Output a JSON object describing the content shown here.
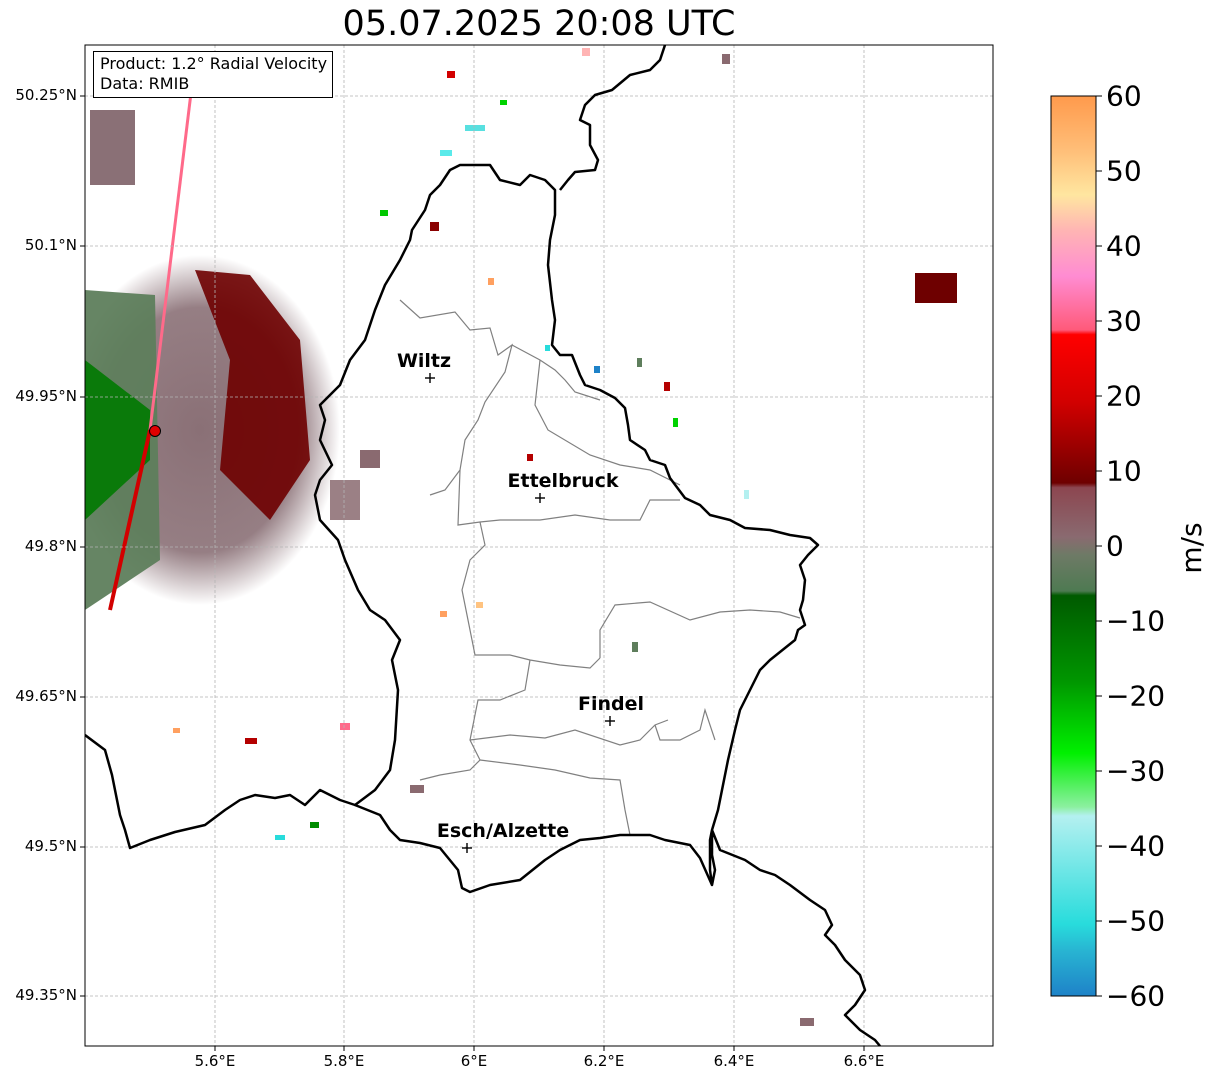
{
  "title": "05.07.2025 20:08 UTC",
  "info": {
    "product": "Product: 1.2° Radial Velocity",
    "data": "Data: RMIB"
  },
  "map": {
    "lat_labels": [
      "50.25°N",
      "50.1°N",
      "49.95°N",
      "49.8°N",
      "49.65°N",
      "49.5°N",
      "49.35°N"
    ],
    "lon_labels": [
      "5.6°E",
      "5.8°E",
      "6°E",
      "6.2°E",
      "6.4°E",
      "6.6°E"
    ],
    "cities": [
      {
        "name": "Wiltz",
        "lon": 5.93,
        "lat": 49.97
      },
      {
        "name": "Ettelbruck",
        "lon": 6.1,
        "lat": 49.85
      },
      {
        "name": "Findel",
        "lon": 6.21,
        "lat": 49.627
      },
      {
        "name": "Esch/Alzette",
        "lon": 5.99,
        "lat": 49.5
      }
    ],
    "radar_site": {
      "lon": 5.505,
      "lat": 49.915
    },
    "grid": true
  },
  "colorbar": {
    "label": "m/s",
    "min": -60,
    "max": 60,
    "ticks": [
      "60",
      "50",
      "40",
      "30",
      "20",
      "10",
      "0",
      "−10",
      "−20",
      "−30",
      "−40",
      "−50",
      "−60"
    ],
    "colors": {
      "orange": "#ff9a4c",
      "peach": "#ffc380",
      "pink": "#ff84c8",
      "red": "#ff0000",
      "darkred": "#6e0000",
      "mauve": "#8a6a6e",
      "grayish_green": "#5a7a5a",
      "green": "#006400",
      "bright_green": "#00e600",
      "light_cyan": "#b4f0f0",
      "cyan": "#28dcdc",
      "blue": "#1e82c8"
    }
  }
}
